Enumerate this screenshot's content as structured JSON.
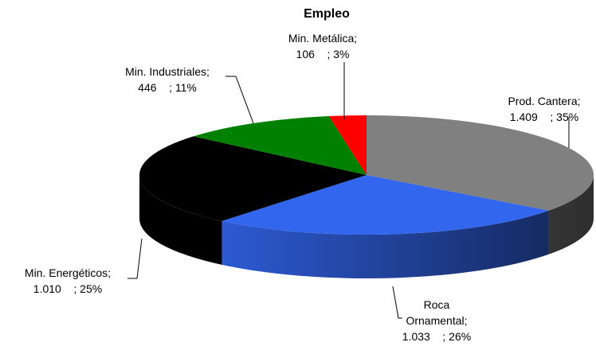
{
  "chart_data": {
    "type": "pie3d",
    "title": "Empleo",
    "categories": [
      "Prod. Cantera",
      "Roca Ornamental",
      "Min. Energéticos",
      "Min. Industriales",
      "Min. Metálica"
    ],
    "values": [
      1409,
      1033,
      1010,
      446,
      106
    ],
    "value_labels": [
      "1.409",
      "1.033",
      "1.010",
      "446",
      "106"
    ],
    "percents": [
      35,
      26,
      25,
      11,
      3
    ],
    "percent_labels": [
      "35%",
      "26%",
      "25%",
      "11%",
      "3%"
    ],
    "label_separator": ";",
    "colors": [
      "#808080",
      "#3366ee",
      "#000000",
      "#008000",
      "#ff0000"
    ]
  }
}
